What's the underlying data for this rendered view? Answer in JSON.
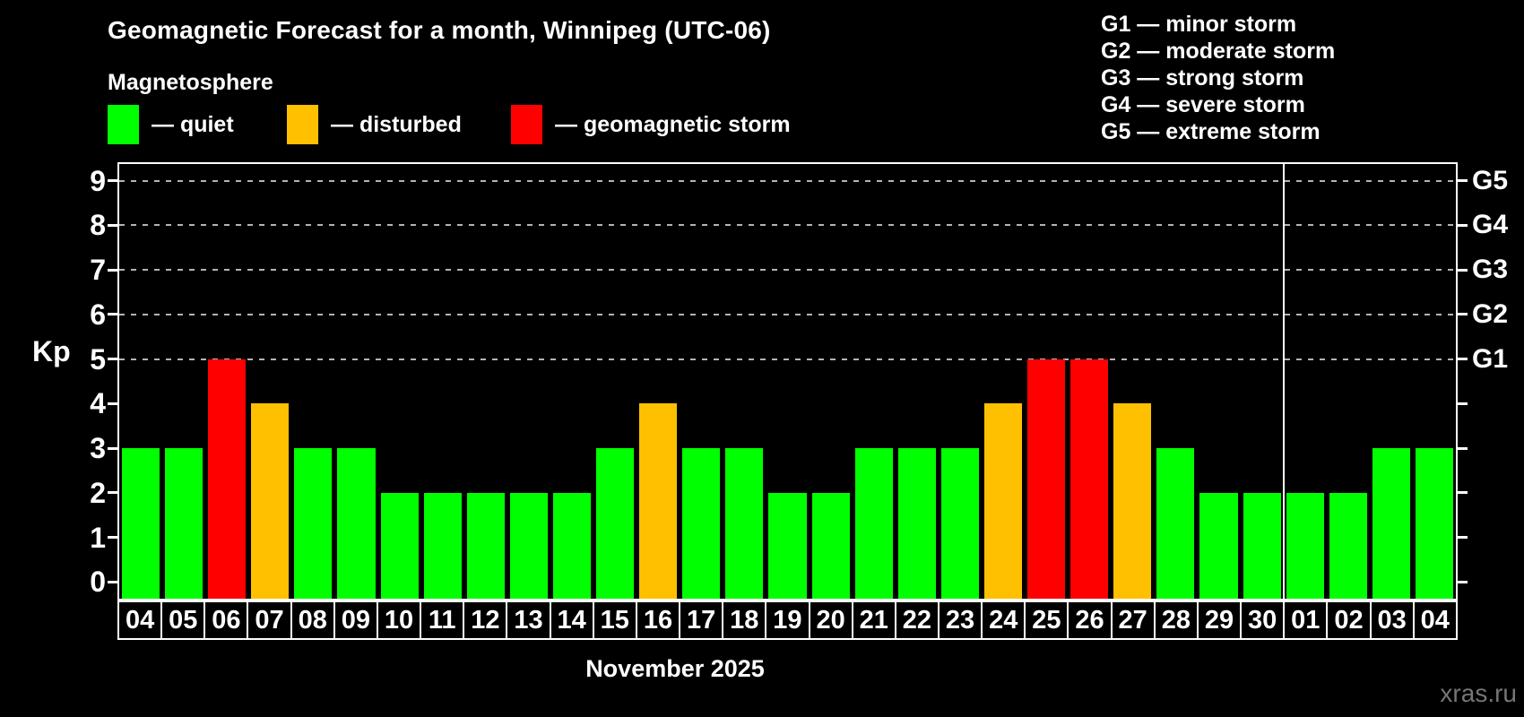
{
  "header": {
    "title": "Geomagnetic Forecast for a month, Winnipeg (UTC-06)",
    "subtitle": "Magnetosphere"
  },
  "legend": {
    "items": [
      {
        "status": "quiet",
        "label": "— quiet",
        "color": "#00ff00"
      },
      {
        "status": "disturbed",
        "label": "— disturbed",
        "color": "#ffc000"
      },
      {
        "status": "storm",
        "label": "— geomagnetic storm",
        "color": "#ff0000"
      }
    ]
  },
  "g_scale": {
    "lines": [
      "G1 — minor storm",
      "G2 — moderate storm",
      "G3 — strong storm",
      "G4 — severe storm",
      "G5 — extreme storm"
    ]
  },
  "watermark": "xras.ru",
  "chart_data": {
    "type": "bar",
    "title": "Geomagnetic Forecast for a month, Winnipeg (UTC-06)",
    "subtitle": "Magnetosphere",
    "ylabel": "Kp",
    "x_caption": "November 2025",
    "categories": [
      "04",
      "05",
      "06",
      "07",
      "08",
      "09",
      "10",
      "11",
      "12",
      "13",
      "14",
      "15",
      "16",
      "17",
      "18",
      "19",
      "20",
      "21",
      "22",
      "23",
      "24",
      "25",
      "26",
      "27",
      "28",
      "29",
      "30",
      "01",
      "02",
      "03",
      "04"
    ],
    "values": [
      3,
      3,
      5,
      4,
      3,
      3,
      2,
      2,
      2,
      2,
      2,
      3,
      4,
      3,
      3,
      2,
      2,
      3,
      3,
      3,
      4,
      5,
      5,
      4,
      3,
      2,
      2,
      2,
      2,
      3,
      3
    ],
    "statuses": [
      "quiet",
      "quiet",
      "storm",
      "disturbed",
      "quiet",
      "quiet",
      "quiet",
      "quiet",
      "quiet",
      "quiet",
      "quiet",
      "quiet",
      "disturbed",
      "quiet",
      "quiet",
      "quiet",
      "quiet",
      "quiet",
      "quiet",
      "quiet",
      "disturbed",
      "storm",
      "storm",
      "disturbed",
      "quiet",
      "quiet",
      "quiet",
      "quiet",
      "quiet",
      "quiet",
      "quiet"
    ],
    "bar_colors": {
      "quiet": "#00ff00",
      "disturbed": "#ffc000",
      "storm": "#ff0000"
    },
    "ylim": [
      -0.375,
      9.375
    ],
    "y_ticks": [
      0,
      1,
      2,
      3,
      4,
      5,
      6,
      7,
      8,
      9
    ],
    "right_axis_labels": [
      {
        "level": 5,
        "text": "G1"
      },
      {
        "level": 6,
        "text": "G2"
      },
      {
        "level": 7,
        "text": "G3"
      },
      {
        "level": 8,
        "text": "G4"
      },
      {
        "level": 9,
        "text": "G5"
      }
    ],
    "grid_levels": [
      5,
      6,
      7,
      8,
      9
    ],
    "grid_style": "dashed",
    "month_separator_after_index": 26,
    "background_color": "#000000",
    "grid_color": "#b4b4b4"
  }
}
